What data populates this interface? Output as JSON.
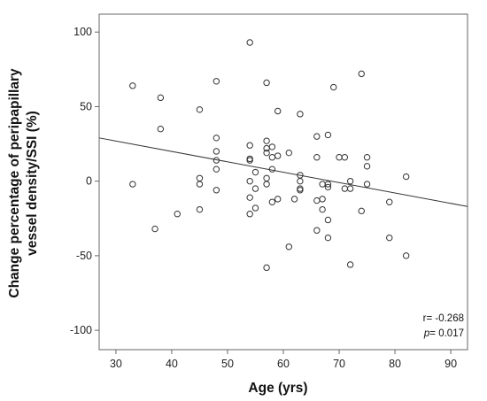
{
  "chart_data": {
    "type": "scatter",
    "xlabel": "Age (yrs)",
    "ylabel": [
      "Change percentage of peripapillary",
      "vessel density/SSI (%)"
    ],
    "xlim": [
      27,
      93
    ],
    "ylim": [
      -113,
      112
    ],
    "x_ticks": [
      30,
      40,
      50,
      60,
      70,
      80,
      90
    ],
    "y_ticks": [
      -100,
      -50,
      0,
      50,
      100
    ],
    "grid": false,
    "legend": "none",
    "colors": {
      "marker_stroke": "#333333",
      "line": "#333333",
      "frame": "#666666"
    },
    "trendline": {
      "x": [
        27,
        93
      ],
      "y": [
        29,
        -17
      ]
    },
    "stats": {
      "r_label": "r= -0.268",
      "p_symbol": "p",
      "p_value": "= 0.017"
    },
    "points": [
      {
        "x": 33,
        "y": 64
      },
      {
        "x": 33,
        "y": -2
      },
      {
        "x": 37,
        "y": -32
      },
      {
        "x": 38,
        "y": 56
      },
      {
        "x": 38,
        "y": 35
      },
      {
        "x": 41,
        "y": -22
      },
      {
        "x": 45,
        "y": 48
      },
      {
        "x": 45,
        "y": 2
      },
      {
        "x": 45,
        "y": -2
      },
      {
        "x": 45,
        "y": -19
      },
      {
        "x": 48,
        "y": 67
      },
      {
        "x": 48,
        "y": 29
      },
      {
        "x": 48,
        "y": 20
      },
      {
        "x": 48,
        "y": 14
      },
      {
        "x": 48,
        "y": 8
      },
      {
        "x": 48,
        "y": -6
      },
      {
        "x": 54,
        "y": 93
      },
      {
        "x": 54,
        "y": 24
      },
      {
        "x": 54,
        "y": 15
      },
      {
        "x": 54,
        "y": 14
      },
      {
        "x": 54,
        "y": 0
      },
      {
        "x": 54,
        "y": -11
      },
      {
        "x": 54,
        "y": -22
      },
      {
        "x": 55,
        "y": 6
      },
      {
        "x": 55,
        "y": -5
      },
      {
        "x": 55,
        "y": -18
      },
      {
        "x": 57,
        "y": 66
      },
      {
        "x": 57,
        "y": 27
      },
      {
        "x": 57,
        "y": 22
      },
      {
        "x": 57,
        "y": 19
      },
      {
        "x": 57,
        "y": 2
      },
      {
        "x": 57,
        "y": -2
      },
      {
        "x": 57,
        "y": -58
      },
      {
        "x": 58,
        "y": 23
      },
      {
        "x": 58,
        "y": 16
      },
      {
        "x": 58,
        "y": 8
      },
      {
        "x": 58,
        "y": -14
      },
      {
        "x": 59,
        "y": 47
      },
      {
        "x": 59,
        "y": 17
      },
      {
        "x": 59,
        "y": -12
      },
      {
        "x": 61,
        "y": 19
      },
      {
        "x": 61,
        "y": -44
      },
      {
        "x": 62,
        "y": -12
      },
      {
        "x": 63,
        "y": 45
      },
      {
        "x": 63,
        "y": 4
      },
      {
        "x": 63,
        "y": 0
      },
      {
        "x": 63,
        "y": -5
      },
      {
        "x": 63,
        "y": -6
      },
      {
        "x": 66,
        "y": 30
      },
      {
        "x": 66,
        "y": 16
      },
      {
        "x": 66,
        "y": -13
      },
      {
        "x": 66,
        "y": -33
      },
      {
        "x": 67,
        "y": -2
      },
      {
        "x": 67,
        "y": -12
      },
      {
        "x": 67,
        "y": -19
      },
      {
        "x": 68,
        "y": 31
      },
      {
        "x": 68,
        "y": -2
      },
      {
        "x": 68,
        "y": -4
      },
      {
        "x": 68,
        "y": -26
      },
      {
        "x": 68,
        "y": -38
      },
      {
        "x": 69,
        "y": 63
      },
      {
        "x": 70,
        "y": 16
      },
      {
        "x": 71,
        "y": 16
      },
      {
        "x": 71,
        "y": -5
      },
      {
        "x": 72,
        "y": 0
      },
      {
        "x": 72,
        "y": -5
      },
      {
        "x": 72,
        "y": -56
      },
      {
        "x": 74,
        "y": 72
      },
      {
        "x": 74,
        "y": -20
      },
      {
        "x": 75,
        "y": 16
      },
      {
        "x": 75,
        "y": 10
      },
      {
        "x": 75,
        "y": -2
      },
      {
        "x": 79,
        "y": -14
      },
      {
        "x": 79,
        "y": -38
      },
      {
        "x": 82,
        "y": 3
      },
      {
        "x": 82,
        "y": -50
      }
    ]
  }
}
